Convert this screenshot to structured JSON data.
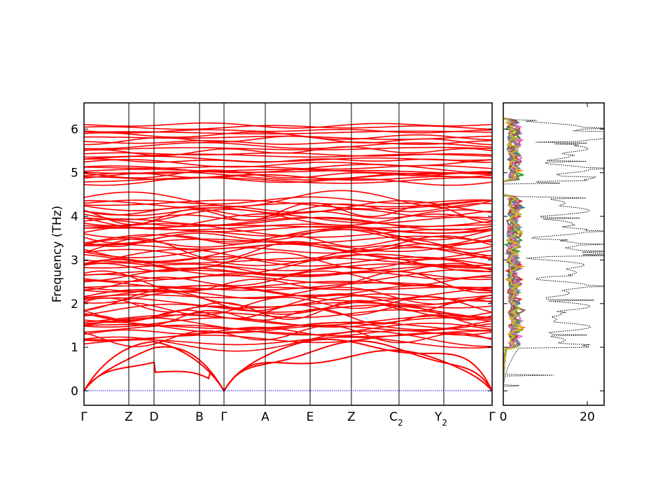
{
  "chart_data": [
    {
      "type": "line",
      "ylabel": "Frequency (THz)",
      "ylim": [
        -0.33,
        6.6
      ],
      "yticks": [
        0,
        1,
        2,
        3,
        4,
        5,
        6
      ],
      "xticks": [
        {
          "label": "Γ",
          "sub": ""
        },
        {
          "label": "Z",
          "sub": ""
        },
        {
          "label": "D",
          "sub": ""
        },
        {
          "label": "B",
          "sub": ""
        },
        {
          "label": "Γ",
          "sub": ""
        },
        {
          "label": "A",
          "sub": ""
        },
        {
          "label": "E",
          "sub": ""
        },
        {
          "label": "Z",
          "sub": ""
        },
        {
          "label": "C",
          "sub": "2"
        },
        {
          "label": "Y",
          "sub": "2"
        },
        {
          "label": "Γ",
          "sub": ""
        }
      ],
      "band_color": "#ff0000",
      "zero_line_color": "#0000ff",
      "band_count": 96,
      "optical_gap_thz": [
        4.45,
        4.8
      ]
    },
    {
      "type": "line",
      "xlim": [
        0,
        24
      ],
      "xticks": [
        0,
        20
      ],
      "ylim": [
        -0.33,
        6.6
      ],
      "total_dos_style": "dotted",
      "series_colors": [
        "#1f77b4",
        "#ff7f0e",
        "#2ca02c",
        "#d62728",
        "#9467bd",
        "#8c564b",
        "#e377c2",
        "#7f7f7f",
        "#bcbd22"
      ]
    }
  ]
}
